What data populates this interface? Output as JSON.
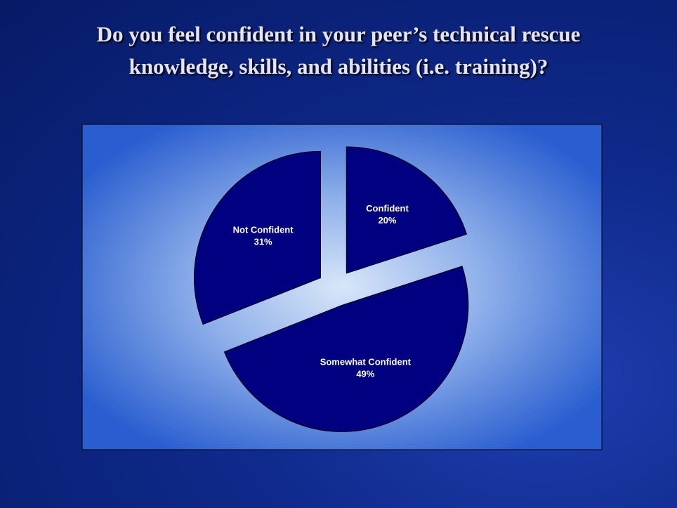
{
  "chart_data": {
    "type": "pie",
    "title": "Do you feel confident in your peer’s technical rescue knowledge, skills, and abilities (i.e. training)?",
    "categories": [
      "Confident",
      "Somewhat Confident",
      "Not Confident"
    ],
    "values": [
      20,
      49,
      31
    ],
    "value_labels": [
      "20%",
      "49%",
      "31%"
    ],
    "color": "#000080"
  }
}
